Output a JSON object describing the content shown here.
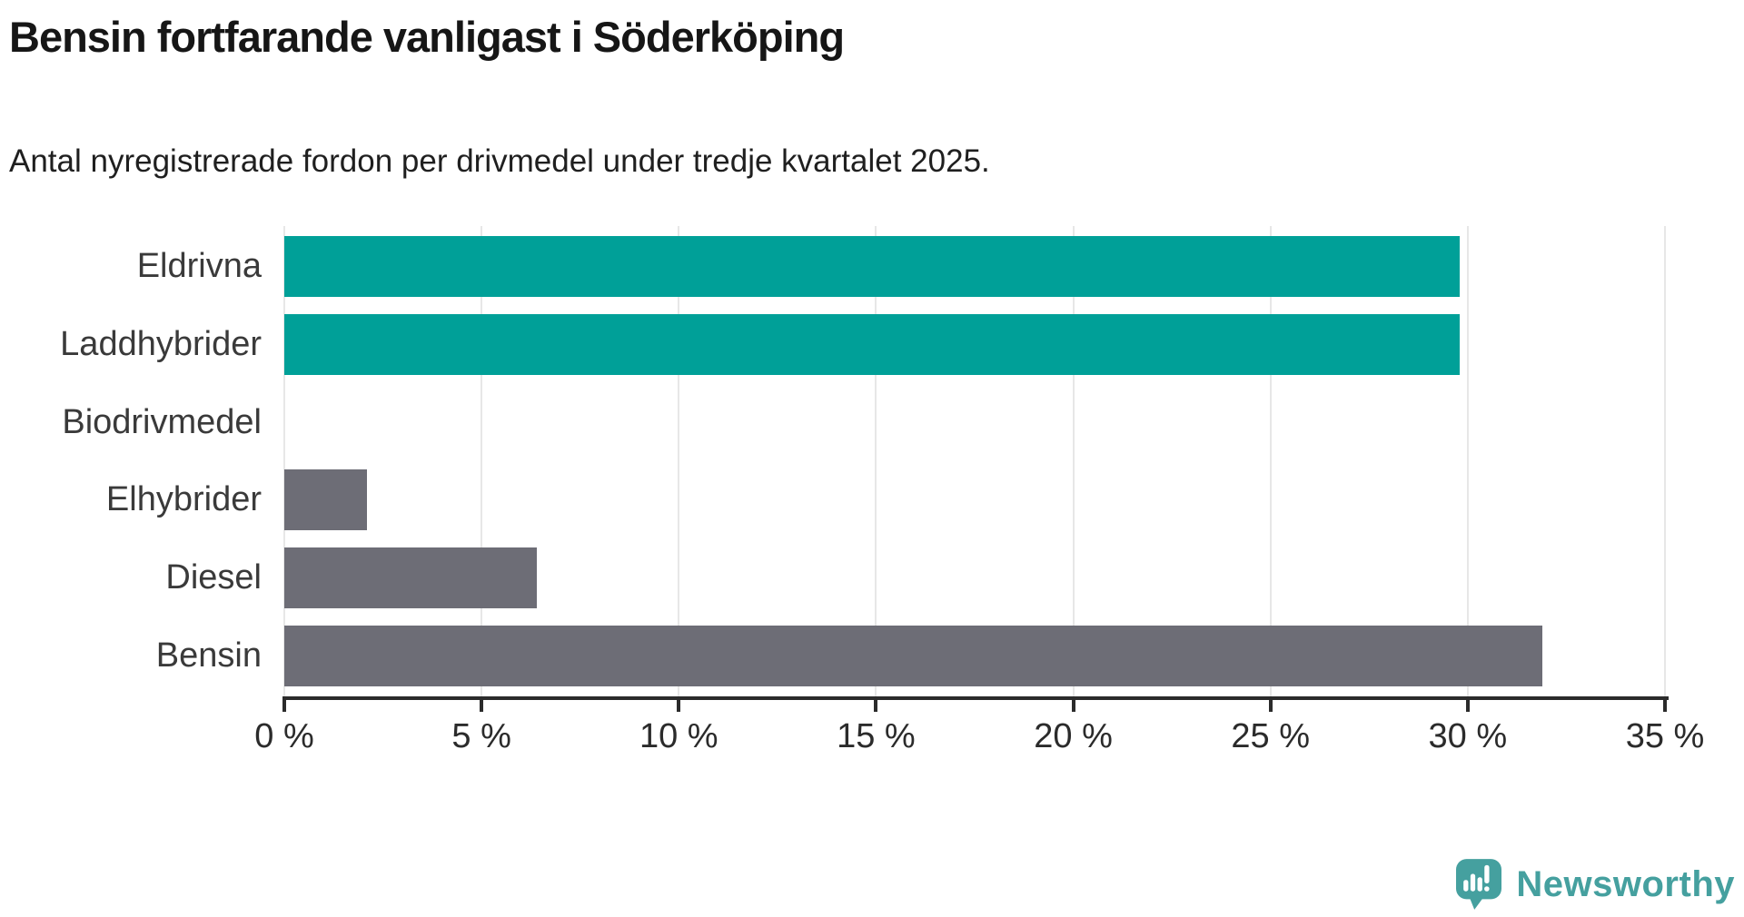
{
  "chart_data": {
    "type": "bar",
    "orientation": "horizontal",
    "title": "Bensin fortfarande vanligast i Söderköping",
    "subtitle": "Antal nyregistrerade fordon per drivmedel under tredje kvartalet 2025.",
    "categories": [
      "Eldrivna",
      "Laddhybrider",
      "Biodrivmedel",
      "Elhybrider",
      "Diesel",
      "Bensin"
    ],
    "values": [
      29.8,
      29.8,
      0,
      2.1,
      6.4,
      31.9
    ],
    "unit": "%",
    "xlabel": "",
    "ylabel": "",
    "xlim": [
      0,
      35
    ],
    "x_tick_values": [
      0,
      5,
      10,
      15,
      20,
      25,
      30,
      35
    ],
    "x_ticks": [
      "0 %",
      "5 %",
      "10 %",
      "15 %",
      "20 %",
      "25 %",
      "30 %",
      "35 %"
    ],
    "grid": true,
    "legend_position": "none",
    "colors": {
      "highlight": "#00a098",
      "default": "#6d6d76",
      "grid": "#e7e7e7",
      "axis": "#2b2b2b",
      "category_label": "#3a3a3a"
    },
    "bar_color_keys": [
      "highlight",
      "highlight",
      "default",
      "default",
      "default",
      "default"
    ]
  },
  "branding": {
    "logo_text": "Newsworthy",
    "logo_color": "#45a09f"
  }
}
